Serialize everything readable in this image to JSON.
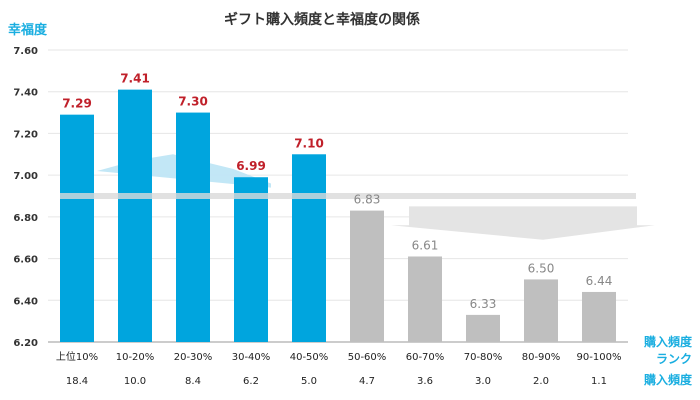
{
  "chart_data": {
    "type": "bar",
    "title": "ギフト購入頻度と幸福度の関係",
    "ylabel": "幸福度",
    "xlabel_rank": "購入頻度\nランク",
    "xlabel_freq": "購入頻度",
    "ylim": [
      6.2,
      7.6
    ],
    "yticks": [
      "6.20",
      "6.40",
      "6.60",
      "6.80",
      "7.00",
      "7.20",
      "7.40",
      "7.60"
    ],
    "categories": [
      "上位10%",
      "10-20%",
      "20-30%",
      "30-40%",
      "40-50%",
      "50-60%",
      "60-70%",
      "70-80%",
      "80-90%",
      "90-100%"
    ],
    "values": [
      7.29,
      7.41,
      7.3,
      6.99,
      7.1,
      6.83,
      6.61,
      6.33,
      6.5,
      6.44
    ],
    "value_labels": [
      "7.29",
      "7.41",
      "7.30",
      "6.99",
      "7.10",
      "6.83",
      "6.61",
      "6.33",
      "6.50",
      "6.44"
    ],
    "frequencies": [
      "18.4",
      "10.0",
      "8.4",
      "6.2",
      "5.0",
      "4.7",
      "3.6",
      "3.0",
      "2.0",
      "1.1"
    ],
    "average_line": 6.9,
    "colors": {
      "top_group": "#00a5de",
      "bottom_group": "#bfbfbf",
      "top_label": "#c0202a",
      "bottom_label": "#888888",
      "axis_label": "#1aaee0"
    },
    "grid": true
  }
}
